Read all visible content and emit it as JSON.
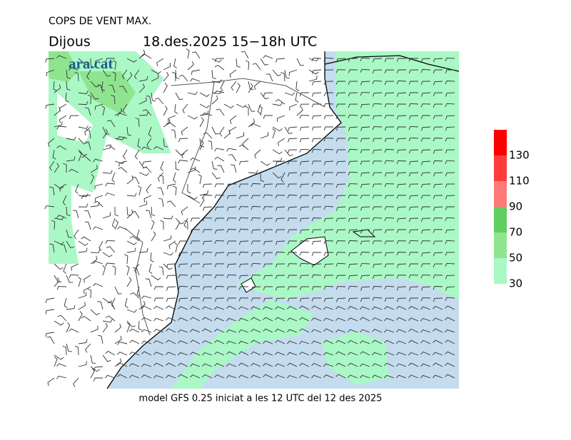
{
  "header": {
    "title": "COPS DE VENT MAX.",
    "day": "Dijous",
    "period": "18.des.2025 15−18h UTC"
  },
  "logo": "ara.cat",
  "footer": "model GFS 0.25 iniciat a les 12 UTC del 12 des 2025",
  "legend": {
    "ticks": [
      30,
      50,
      70,
      90,
      110,
      130
    ],
    "colors": [
      "#aaf8c6",
      "#8fe58f",
      "#5fcf5f",
      "#ff7878",
      "#ff3c3c",
      "#ff0000"
    ]
  }
}
